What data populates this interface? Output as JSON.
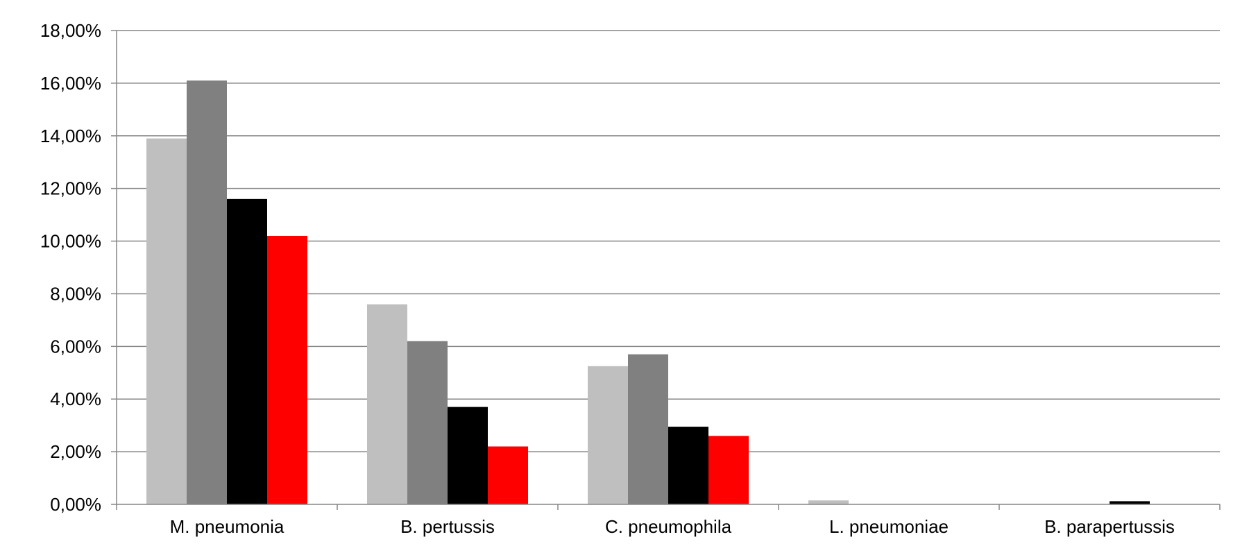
{
  "chart_data": {
    "type": "bar",
    "categories": [
      "M. pneumonia",
      "B. pertussis",
      "C. pneumophila",
      "L. pneumoniae",
      "B. parapertussis"
    ],
    "series": [
      {
        "values": [
          13.9,
          7.6,
          5.25,
          0.15,
          0.0
        ],
        "color": "#bfbfbf"
      },
      {
        "values": [
          16.1,
          6.2,
          5.7,
          0.0,
          0.0
        ],
        "color": "#808080"
      },
      {
        "values": [
          11.6,
          3.7,
          2.95,
          0.0,
          0.12
        ],
        "color": "#000000"
      },
      {
        "values": [
          10.2,
          2.2,
          2.6,
          0.0,
          0.0
        ],
        "color": "#ff0000"
      }
    ],
    "ylim": [
      0,
      18
    ],
    "y_ticks": [
      "0,00%",
      "2,00%",
      "4,00%",
      "6,00%",
      "8,00%",
      "10,00%",
      "12,00%",
      "14,00%",
      "16,00%",
      "18,00%"
    ],
    "grid": true,
    "legend": "none"
  }
}
